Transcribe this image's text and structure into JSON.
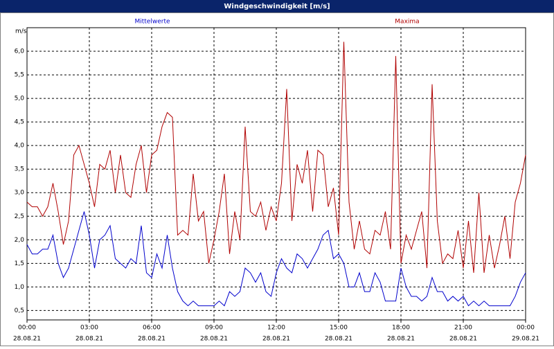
{
  "chart_data": {
    "type": "line",
    "title": "Windgeschwindigkeit [m/s]",
    "y_label": "m/s",
    "x": [
      0,
      0.25,
      0.5,
      0.75,
      1,
      1.25,
      1.5,
      1.75,
      2,
      2.25,
      2.5,
      2.75,
      3,
      3.25,
      3.5,
      3.75,
      4,
      4.25,
      4.5,
      4.75,
      5,
      5.25,
      5.5,
      5.75,
      6,
      6.25,
      6.5,
      6.75,
      7,
      7.25,
      7.5,
      7.75,
      8,
      8.25,
      8.5,
      8.75,
      9,
      9.25,
      9.5,
      9.75,
      10,
      10.25,
      10.5,
      10.75,
      11,
      11.25,
      11.5,
      11.75,
      12,
      12.25,
      12.5,
      12.75,
      13,
      13.25,
      13.5,
      13.75,
      14,
      14.25,
      14.5,
      14.75,
      15,
      15.25,
      15.5,
      15.75,
      16,
      16.25,
      16.5,
      16.75,
      17,
      17.25,
      17.5,
      17.75,
      18,
      18.25,
      18.5,
      18.75,
      19,
      19.25,
      19.5,
      19.75,
      20,
      20.25,
      20.5,
      20.75,
      21,
      21.25,
      21.5,
      21.75,
      22,
      22.25,
      22.5,
      22.75,
      23,
      23.25,
      23.5,
      23.75,
      24
    ],
    "series": [
      {
        "name": "Mittelwerte",
        "color": "#0000cc",
        "values": [
          1.9,
          1.7,
          1.7,
          1.8,
          1.8,
          2.1,
          1.5,
          1.2,
          1.4,
          1.8,
          2.2,
          2.6,
          2.1,
          1.4,
          2.0,
          2.1,
          2.3,
          1.6,
          1.5,
          1.4,
          1.6,
          1.5,
          2.3,
          1.3,
          1.2,
          1.7,
          1.4,
          2.1,
          1.4,
          0.9,
          0.7,
          0.6,
          0.7,
          0.6,
          0.6,
          0.6,
          0.6,
          0.7,
          0.6,
          0.9,
          0.8,
          0.9,
          1.4,
          1.3,
          1.1,
          1.3,
          0.9,
          0.8,
          1.3,
          1.6,
          1.4,
          1.3,
          1.7,
          1.6,
          1.4,
          1.6,
          1.8,
          2.1,
          2.2,
          1.6,
          1.7,
          1.5,
          1.0,
          1.0,
          1.3,
          0.9,
          0.9,
          1.3,
          1.1,
          0.7,
          0.7,
          0.7,
          1.4,
          1.0,
          0.8,
          0.8,
          0.7,
          0.8,
          1.2,
          0.9,
          0.9,
          0.7,
          0.8,
          0.7,
          0.8,
          0.6,
          0.7,
          0.6,
          0.7,
          0.6,
          0.6,
          0.6,
          0.6,
          0.6,
          0.8,
          1.1,
          1.3
        ]
      },
      {
        "name": "Maxima",
        "color": "#b00000",
        "values": [
          2.8,
          2.7,
          2.7,
          2.5,
          2.7,
          3.2,
          2.6,
          1.9,
          2.4,
          3.8,
          4.0,
          3.6,
          3.2,
          2.7,
          3.6,
          3.5,
          3.9,
          3.0,
          3.8,
          3.0,
          2.9,
          3.6,
          4.0,
          3.0,
          3.8,
          3.9,
          4.4,
          4.7,
          4.6,
          2.1,
          2.2,
          2.1,
          3.4,
          2.4,
          2.6,
          1.5,
          2.0,
          2.6,
          3.4,
          1.7,
          2.6,
          2.0,
          4.4,
          2.6,
          2.5,
          2.8,
          2.2,
          2.7,
          2.4,
          3.2,
          5.2,
          2.4,
          3.6,
          3.2,
          3.9,
          2.6,
          3.9,
          3.8,
          2.7,
          3.1,
          2.1,
          6.2,
          2.8,
          1.8,
          2.4,
          1.8,
          1.7,
          2.2,
          2.1,
          2.6,
          1.8,
          5.9,
          1.5,
          2.1,
          1.8,
          2.2,
          2.6,
          1.4,
          5.3,
          2.4,
          1.5,
          1.7,
          1.6,
          2.2,
          1.4,
          2.4,
          1.3,
          3.0,
          1.3,
          2.1,
          1.4,
          1.9,
          2.5,
          1.6,
          2.8,
          3.2,
          3.8
        ]
      }
    ],
    "xlim": [
      0,
      24
    ],
    "xticks": [
      {
        "value": 0,
        "label": "00:00",
        "date": "28.08.21"
      },
      {
        "value": 3,
        "label": "03:00",
        "date": "28.08.21"
      },
      {
        "value": 6,
        "label": "06:00",
        "date": "28.08.21"
      },
      {
        "value": 9,
        "label": "09:00",
        "date": "28.08.21"
      },
      {
        "value": 12,
        "label": "12:00",
        "date": "28.08.21"
      },
      {
        "value": 15,
        "label": "15:00",
        "date": "28.08.21"
      },
      {
        "value": 18,
        "label": "18:00",
        "date": "28.08.21"
      },
      {
        "value": 21,
        "label": "21:00",
        "date": "28.08.21"
      },
      {
        "value": 24,
        "label": "00:00",
        "date": "29.08.21"
      }
    ],
    "ylim": [
      0.3,
      6.5
    ],
    "yticks": [
      {
        "value": 0.5,
        "label": "0,5"
      },
      {
        "value": 1,
        "label": "1,0"
      },
      {
        "value": 1.5,
        "label": "1,5"
      },
      {
        "value": 2,
        "label": "2,0"
      },
      {
        "value": 2.5,
        "label": "2,5"
      },
      {
        "value": 3,
        "label": "3,0"
      },
      {
        "value": 3.5,
        "label": "3,5"
      },
      {
        "value": 4,
        "label": "4,0"
      },
      {
        "value": 4.5,
        "label": "4,5"
      },
      {
        "value": 5,
        "label": "5,0"
      },
      {
        "value": 5.5,
        "label": "5,5"
      },
      {
        "value": 6,
        "label": "6,0"
      }
    ],
    "grid": true
  }
}
